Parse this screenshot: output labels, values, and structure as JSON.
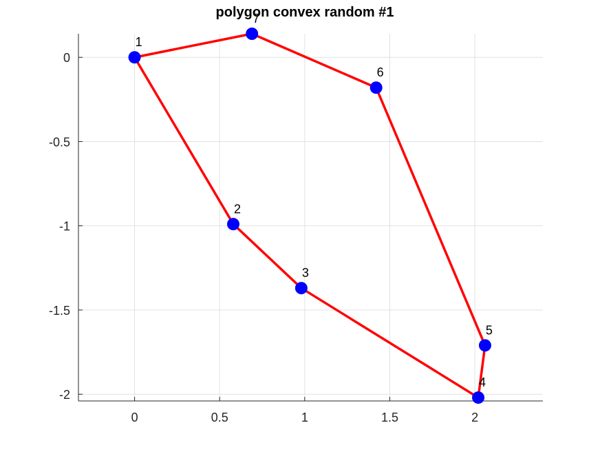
{
  "chart_data": {
    "type": "scatter",
    "title": "polygon convex random #1",
    "xlabel": "",
    "ylabel": "",
    "xlim": [
      -0.33,
      2.4
    ],
    "ylim": [
      -2.04,
      0.14
    ],
    "xticks": [
      0,
      0.5,
      1,
      1.5,
      2
    ],
    "xtick_labels": [
      "0",
      "0.5",
      "1",
      "1.5",
      "2"
    ],
    "yticks": [
      0,
      -0.5,
      -1,
      -1.5,
      -2
    ],
    "ytick_labels": [
      "0",
      "-0.5",
      "-1",
      "-1.5",
      "-2"
    ],
    "grid": true,
    "points": [
      {
        "label": "1",
        "x": 0.0,
        "y": 0.0
      },
      {
        "label": "2",
        "x": 0.58,
        "y": -0.99
      },
      {
        "label": "3",
        "x": 0.98,
        "y": -1.37
      },
      {
        "label": "4",
        "x": 2.02,
        "y": -2.02
      },
      {
        "label": "5",
        "x": 2.06,
        "y": -1.71
      },
      {
        "label": "6",
        "x": 1.42,
        "y": -0.18
      },
      {
        "label": "7",
        "x": 0.69,
        "y": 0.14
      }
    ],
    "polygon_order": [
      0,
      1,
      2,
      3,
      4,
      5,
      6,
      0
    ],
    "point_color": "#0000ff",
    "line_color": "#ff0000"
  }
}
